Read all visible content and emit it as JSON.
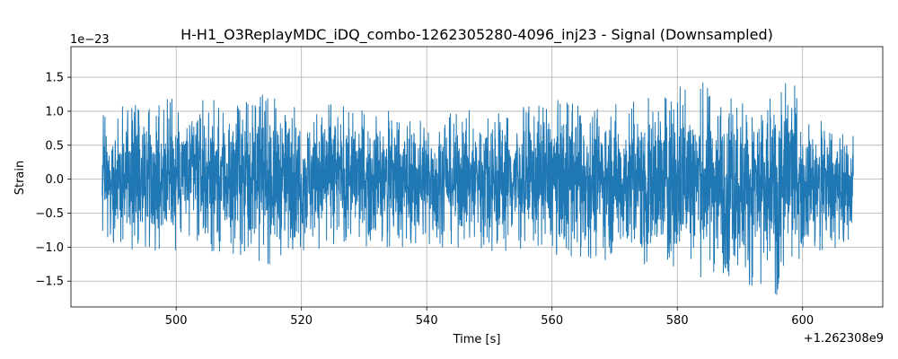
{
  "chart_data": {
    "type": "line",
    "title": "H-H1_O3ReplayMDC_iDQ_combo-1262305280-4096_inj23 - Signal (Downsampled)",
    "xlabel": "Time [s]",
    "ylabel": "Strain",
    "x_offset_label": "+1.262308e9",
    "y_scale_label": "1e−23",
    "x_ticks": [
      500,
      520,
      540,
      560,
      580,
      600
    ],
    "x_tick_labels": [
      "500",
      "520",
      "540",
      "560",
      "580",
      "600"
    ],
    "y_ticks": [
      -1.5,
      -1.0,
      -0.5,
      0.0,
      0.5,
      1.0,
      1.5
    ],
    "y_tick_labels": [
      "−1.5",
      "−1.0",
      "−0.5",
      "0.0",
      "0.5",
      "1.0",
      "1.5"
    ],
    "xlim": [
      483.2,
      612.8
    ],
    "ylim": [
      -1.88,
      1.95
    ],
    "grid": true,
    "series": [
      {
        "color": "#1f77b4",
        "x_range": [
          488.2,
          608.1
        ],
        "envelope": {
          "x": [
            488.2,
            490,
            495,
            500,
            505,
            510,
            515,
            520,
            525,
            530,
            535,
            540,
            545,
            550,
            555,
            560,
            565,
            570,
            573,
            576,
            580,
            585,
            590,
            593,
            596,
            598,
            600,
            603,
            606,
            608.1
          ],
          "upper": [
            0.95,
            1.05,
            1.1,
            1.2,
            1.15,
            1.2,
            1.25,
            1.0,
            1.1,
            1.0,
            1.0,
            1.0,
            0.95,
            1.15,
            1.05,
            1.15,
            1.2,
            1.15,
            1.15,
            1.2,
            1.5,
            1.4,
            1.35,
            1.3,
            1.25,
            1.65,
            0.9,
            0.85,
            0.8,
            0.75
          ],
          "lower": [
            -0.95,
            -1.0,
            -1.05,
            -1.05,
            -1.05,
            -1.1,
            -1.25,
            -1.05,
            -1.0,
            -1.0,
            -1.0,
            -1.0,
            -1.0,
            -1.05,
            -1.05,
            -1.1,
            -1.15,
            -1.2,
            -1.25,
            -1.3,
            -1.4,
            -1.45,
            -1.5,
            -1.6,
            -1.7,
            -1.4,
            -1.1,
            -1.05,
            -1.0,
            -0.9
          ]
        }
      }
    ]
  }
}
